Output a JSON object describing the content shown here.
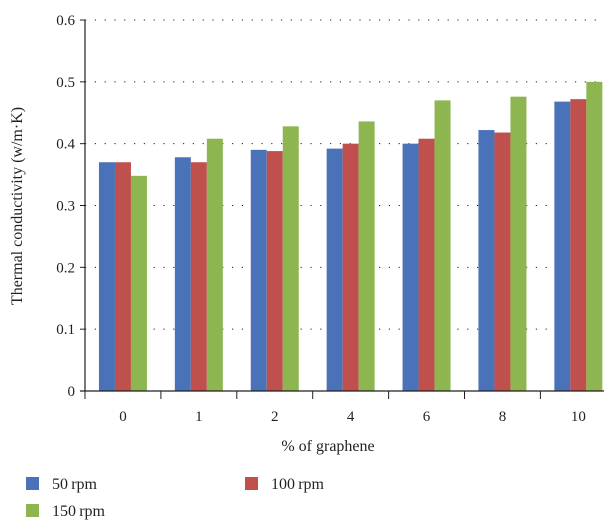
{
  "chart_data": {
    "type": "bar",
    "title": "",
    "xlabel": "% of graphene",
    "ylabel": "Thermal conductivity (w/m·K)",
    "categories": [
      "0",
      "1",
      "2",
      "4",
      "6",
      "8",
      "10"
    ],
    "ylim": [
      0,
      0.6
    ],
    "yticks": [
      "0",
      "0.1",
      "0.2",
      "0.3",
      "0.4",
      "0.5",
      "0.6"
    ],
    "grid": "horizontal dotted",
    "legend_position": "bottom",
    "series": [
      {
        "name": "50 rpm",
        "color": "#4a72b8",
        "values": [
          0.37,
          0.378,
          0.39,
          0.392,
          0.4,
          0.422,
          0.468
        ]
      },
      {
        "name": "100 rpm",
        "color": "#c0504d",
        "values": [
          0.37,
          0.37,
          0.388,
          0.4,
          0.408,
          0.418,
          0.472
        ]
      },
      {
        "name": "150 rpm",
        "color": "#8db651",
        "values": [
          0.348,
          0.408,
          0.428,
          0.436,
          0.47,
          0.476,
          0.5
        ]
      }
    ]
  }
}
